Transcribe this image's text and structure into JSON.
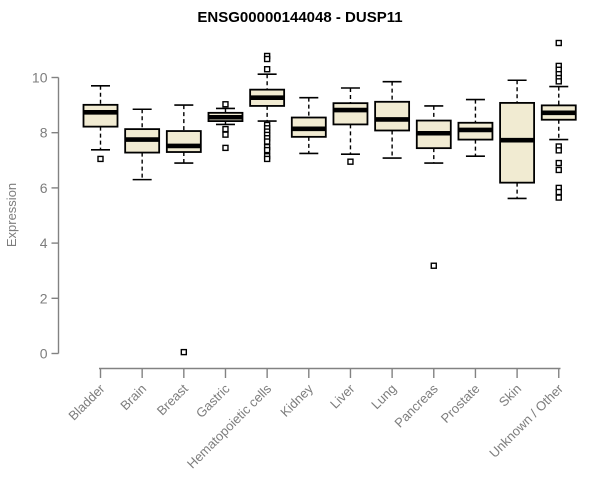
{
  "title": "ENSG00000144048 - DUSP11",
  "chart_data": {
    "type": "boxplot",
    "title": "ENSG00000144048 - DUSP11",
    "xlabel": "",
    "ylabel": "Expression",
    "ylim": [
      0,
      11.5
    ],
    "yticks": [
      0,
      2,
      4,
      6,
      8,
      10
    ],
    "grid": false,
    "legend": "none",
    "categories": [
      "Bladder",
      "Brain",
      "Breast",
      "Gastric",
      "Hematopoietic cells",
      "Kidney",
      "Liver",
      "Lung",
      "Pancreas",
      "Prostate",
      "Skin",
      "Unknown / Other"
    ],
    "series": [
      {
        "name": "Bladder",
        "whisker_low": 7.38,
        "q1": 8.22,
        "median": 8.74,
        "q3": 9.01,
        "whisker_high": 9.7,
        "outliers": [
          7.05
        ]
      },
      {
        "name": "Brain",
        "whisker_low": 6.3,
        "q1": 7.28,
        "median": 7.75,
        "q3": 8.13,
        "whisker_high": 8.85,
        "outliers": []
      },
      {
        "name": "Breast",
        "whisker_low": 6.9,
        "q1": 7.3,
        "median": 7.52,
        "q3": 8.06,
        "whisker_high": 9.0,
        "outliers": [
          0.05
        ]
      },
      {
        "name": "Gastric",
        "whisker_low": 8.3,
        "q1": 8.42,
        "median": 8.56,
        "q3": 8.72,
        "whisker_high": 8.88,
        "outliers": [
          9.03,
          8.13,
          7.93,
          7.45
        ]
      },
      {
        "name": "Hematopoietic cells",
        "whisker_low": 8.42,
        "q1": 8.97,
        "median": 9.27,
        "q3": 9.56,
        "whisker_high": 10.12,
        "outliers": [
          10.78,
          10.67,
          10.3,
          8.28,
          8.16,
          8.04,
          7.92,
          7.8,
          7.68,
          7.48,
          7.37,
          7.15,
          7.05
        ]
      },
      {
        "name": "Kidney",
        "whisker_low": 7.25,
        "q1": 7.85,
        "median": 8.14,
        "q3": 8.55,
        "whisker_high": 9.27,
        "outliers": []
      },
      {
        "name": "Liver",
        "whisker_low": 7.22,
        "q1": 8.3,
        "median": 8.82,
        "q3": 9.07,
        "whisker_high": 9.62,
        "outliers": [
          6.95
        ]
      },
      {
        "name": "Lung",
        "whisker_low": 7.08,
        "q1": 8.08,
        "median": 8.48,
        "q3": 9.12,
        "whisker_high": 9.85,
        "outliers": []
      },
      {
        "name": "Pancreas",
        "whisker_low": 6.9,
        "q1": 7.44,
        "median": 7.98,
        "q3": 8.44,
        "whisker_high": 8.97,
        "outliers": [
          3.18
        ]
      },
      {
        "name": "Prostate",
        "whisker_low": 7.15,
        "q1": 7.75,
        "median": 8.1,
        "q3": 8.36,
        "whisker_high": 9.2,
        "outliers": []
      },
      {
        "name": "Skin",
        "whisker_low": 5.62,
        "q1": 6.19,
        "median": 7.73,
        "q3": 9.08,
        "whisker_high": 9.9,
        "outliers": []
      },
      {
        "name": "Unknown / Other",
        "whisker_low": 7.75,
        "q1": 8.47,
        "median": 8.72,
        "q3": 8.99,
        "whisker_high": 9.67,
        "outliers": [
          11.25,
          10.42,
          10.28,
          10.12,
          9.98,
          9.86,
          7.5,
          7.36,
          6.9,
          6.65,
          6.0,
          5.85,
          5.65
        ]
      }
    ],
    "colors": {
      "box_fill": "#F1EBD2",
      "box_border": "#000000",
      "median": "#000000",
      "axis": "#828282",
      "tick_text": "#7D7D7D",
      "title_text": "#000000",
      "background": "#FFFFFF"
    }
  }
}
